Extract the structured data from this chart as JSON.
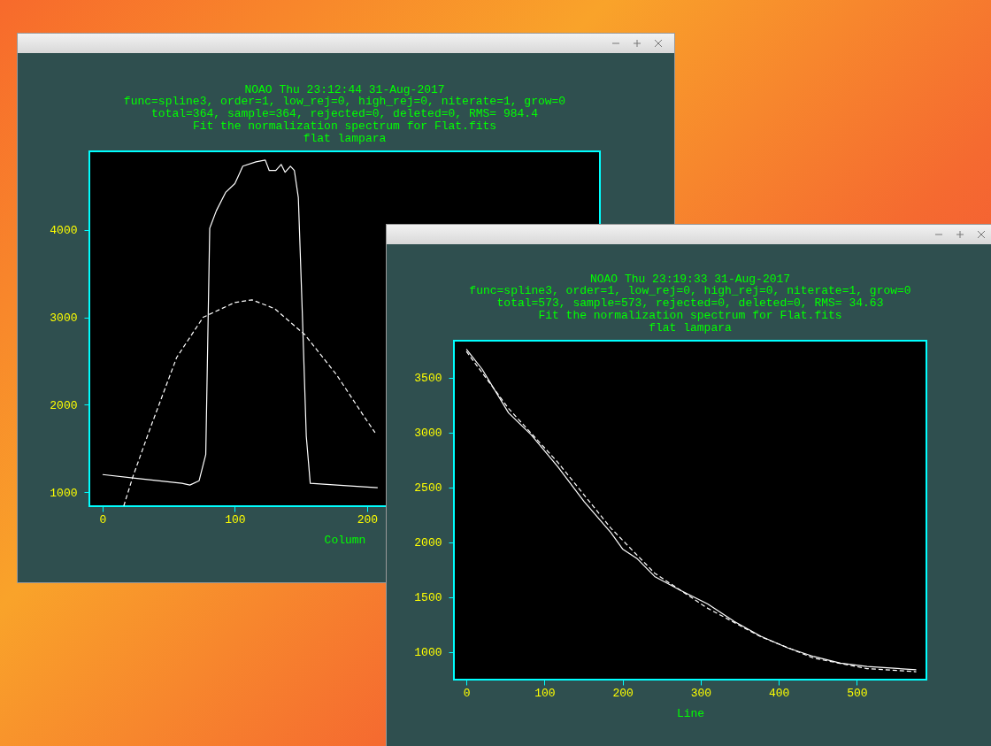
{
  "chart_data": [
    {
      "type": "line",
      "title": "NOAO Thu 23:12:44 31-Aug-2017",
      "subtitle": "func=spline3, order=1, low_rej=0, high_rej=0, niterate=1, grow=0\ntotal=364, sample=364, rejected=0, deleted=0, RMS=  984.4\nFit the normalization spectrum for Flat.fits\nflat lampara",
      "xlabel": "Column",
      "xlim": [
        -10,
        376
      ],
      "xticks": [
        0,
        100,
        200
      ],
      "ylim": [
        838,
        4900
      ],
      "yticks": [
        1000,
        2000,
        3000,
        4000
      ],
      "grid": false,
      "series": [
        {
          "color": "#ffffff",
          "line_style": "solid",
          "x": [
            0,
            23,
            60,
            66,
            73,
            78,
            81,
            86,
            93,
            100,
            103,
            106,
            116,
            123,
            126,
            131,
            135,
            138,
            142,
            145,
            148,
            151,
            154,
            157,
            177,
            208
          ],
          "values": [
            1200,
            1160,
            1100,
            1080,
            1130,
            1430,
            4020,
            4220,
            4430,
            4530,
            4630,
            4730,
            4780,
            4800,
            4680,
            4680,
            4750,
            4660,
            4730,
            4680,
            4370,
            3050,
            1640,
            1100,
            1080,
            1050
          ]
        },
        {
          "color": "#ffffff",
          "line_style": "dashed",
          "x": [
            16,
            23,
            36,
            56,
            76,
            100,
            113,
            130,
            153,
            177,
            197,
            206
          ],
          "values": [
            840,
            1180,
            1730,
            2540,
            3000,
            3170,
            3200,
            3100,
            2800,
            2340,
            1880,
            1680
          ]
        }
      ]
    },
    {
      "type": "line",
      "title": "NOAO Thu 23:19:33 31-Aug-2017",
      "subtitle": "func=spline3, order=1, low_rej=0, high_rej=0, niterate=1, grow=0\ntotal=573, sample=573, rejected=0, deleted=0, RMS=  34.63\nFit the normalization spectrum for Flat.fits\nflat lampara",
      "xlabel": "Line",
      "xlim": [
        -16,
        589
      ],
      "xticks": [
        0,
        100,
        200,
        300,
        400,
        500
      ],
      "ylim": [
        750,
        3838
      ],
      "yticks": [
        1000,
        1500,
        2000,
        2500,
        3000,
        3500
      ],
      "grid": false,
      "series": [
        {
          "color": "#ffffff",
          "line_style": "solid",
          "x": [
            0,
            20,
            54,
            83,
            117,
            151,
            185,
            200,
            219,
            241,
            275,
            309,
            343,
            377,
            411,
            445,
            479,
            513,
            576
          ],
          "values": [
            3760,
            3580,
            3180,
            2980,
            2690,
            2370,
            2090,
            1940,
            1850,
            1690,
            1560,
            1440,
            1280,
            1145,
            1040,
            960,
            900,
            870,
            840
          ]
        },
        {
          "color": "#ffffff",
          "line_style": "dashed",
          "x": [
            0,
            54,
            117,
            185,
            241,
            309,
            377,
            445,
            513,
            576
          ],
          "values": [
            3740,
            3220,
            2730,
            2130,
            1720,
            1400,
            1140,
            945,
            850,
            822
          ]
        }
      ]
    }
  ]
}
